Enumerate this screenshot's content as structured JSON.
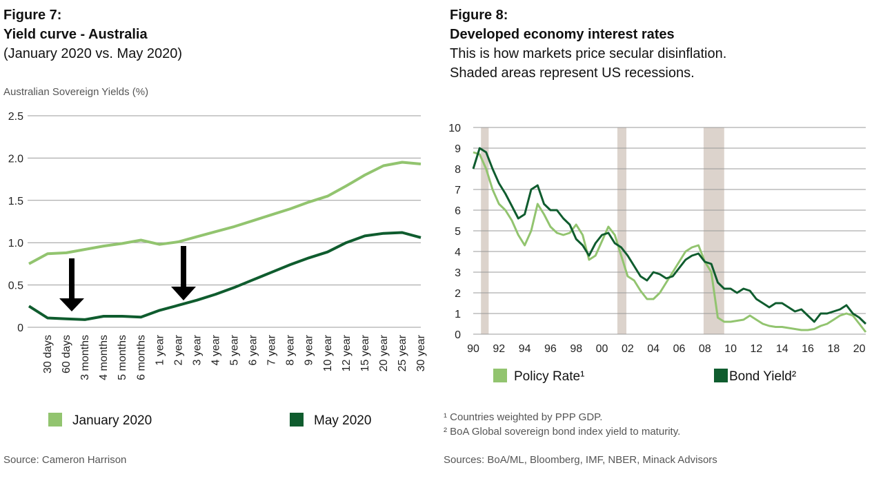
{
  "chart_data": [
    {
      "type": "line",
      "figure": "Figure 7:",
      "title": "Yield curve - Australia",
      "subtitle": "(January 2020 vs. May 2020)",
      "y_label": "Australian Sovereign Yields (%)",
      "categories": [
        null,
        "30 days",
        "60 days",
        "3 months",
        "4 months",
        "5 months",
        "6 months",
        "1 year",
        "2 year",
        "3 year",
        "4 year",
        "5 year",
        "6 year",
        "7 year",
        "8 year",
        "9 year",
        "10 year",
        "12 year",
        "15 year",
        "20 year",
        "25 year",
        "30 year"
      ],
      "series": [
        {
          "name": "January 2020",
          "color": "#92c46f",
          "values": [
            0.75,
            0.87,
            0.88,
            0.92,
            0.96,
            0.99,
            1.03,
            0.98,
            1.01,
            1.07,
            1.13,
            1.19,
            1.26,
            1.33,
            1.4,
            1.48,
            1.55,
            1.67,
            1.8,
            1.91,
            1.95,
            1.93
          ]
        },
        {
          "name": "May 2020",
          "color": "#0f5c2e",
          "values": [
            0.25,
            0.11,
            0.1,
            0.09,
            0.13,
            0.13,
            0.12,
            0.2,
            0.26,
            0.32,
            0.39,
            0.47,
            0.56,
            0.65,
            0.74,
            0.82,
            0.89,
            1.0,
            1.08,
            1.11,
            1.12,
            1.06
          ]
        }
      ],
      "ylim": [
        0,
        2.5
      ],
      "yticks": [
        0,
        0.5,
        {
          "value": 1,
          "label": "1.0"
        },
        1.5,
        {
          "value": 2,
          "label": "2.0"
        },
        2.5
      ],
      "grid": true,
      "source": "Source: Cameron Harrison"
    },
    {
      "type": "line",
      "figure": "Figure 8:",
      "title": "Developed economy interest rates",
      "subtitle": [
        "This is how markets price secular disinflation.",
        "Shaded areas represent US recessions."
      ],
      "x": [
        1990,
        1990.5,
        1991,
        1991.5,
        1992,
        1992.5,
        1993,
        1993.5,
        1994,
        1994.5,
        1995,
        1995.5,
        1996,
        1996.5,
        1997,
        1997.5,
        1998,
        1998.5,
        1999,
        1999.5,
        2000,
        2000.5,
        2001,
        2001.5,
        2002,
        2002.5,
        2003,
        2003.5,
        2004,
        2004.5,
        2005,
        2005.5,
        2006,
        2006.5,
        2007,
        2007.5,
        2008,
        2008.5,
        2009,
        2009.5,
        2010,
        2010.5,
        2011,
        2011.5,
        2012,
        2012.5,
        2013,
        2013.5,
        2014,
        2014.5,
        2015,
        2015.5,
        2016,
        2016.5,
        2017,
        2017.5,
        2018,
        2018.5,
        2019,
        2019.5,
        2020,
        2020.5
      ],
      "series": [
        {
          "name": "Policy Rate¹",
          "color": "#92c46f",
          "values": [
            8.8,
            8.7,
            8.0,
            7.0,
            6.3,
            6.0,
            5.5,
            4.8,
            4.3,
            5.0,
            6.3,
            5.8,
            5.2,
            4.9,
            4.8,
            4.9,
            5.3,
            4.8,
            3.6,
            3.8,
            4.5,
            5.2,
            4.8,
            3.8,
            2.8,
            2.6,
            2.1,
            1.7,
            1.7,
            2.0,
            2.5,
            3.0,
            3.5,
            4.0,
            4.2,
            4.3,
            3.5,
            3.0,
            0.8,
            0.6,
            0.6,
            0.65,
            0.7,
            0.9,
            0.7,
            0.5,
            0.4,
            0.35,
            0.35,
            0.3,
            0.25,
            0.2,
            0.2,
            0.25,
            0.4,
            0.5,
            0.7,
            0.9,
            1.0,
            0.9,
            0.5,
            0.1
          ]
        },
        {
          "name": "Bond Yield²",
          "color": "#0f5c2e",
          "values": [
            8.0,
            9.0,
            8.8,
            8.0,
            7.3,
            6.8,
            6.2,
            5.6,
            5.8,
            7.0,
            7.2,
            6.3,
            6.0,
            6.0,
            5.6,
            5.3,
            4.6,
            4.3,
            3.8,
            4.4,
            4.8,
            4.9,
            4.4,
            4.2,
            3.8,
            3.3,
            2.8,
            2.6,
            3.0,
            2.9,
            2.7,
            2.8,
            3.2,
            3.6,
            3.8,
            3.9,
            3.5,
            3.4,
            2.5,
            2.2,
            2.2,
            2.0,
            2.2,
            2.1,
            1.7,
            1.5,
            1.3,
            1.5,
            1.5,
            1.3,
            1.1,
            1.2,
            0.9,
            0.6,
            1.0,
            1.0,
            1.1,
            1.2,
            1.4,
            1.0,
            0.8,
            0.5
          ]
        }
      ],
      "shaded_ranges": [
        [
          1990.6,
          1991.2
        ],
        [
          2001.2,
          2001.9
        ],
        [
          2007.9,
          2009.5
        ]
      ],
      "shade_color": "#dcd3cc",
      "xlim": [
        1990,
        2020.5
      ],
      "xticks": [
        {
          "value": 1990,
          "label": "90"
        },
        {
          "value": 1992,
          "label": "92"
        },
        {
          "value": 1994,
          "label": "94"
        },
        {
          "value": 1996,
          "label": "96"
        },
        {
          "value": 1998,
          "label": "98"
        },
        {
          "value": 2000,
          "label": "00"
        },
        {
          "value": 2002,
          "label": "02"
        },
        {
          "value": 2004,
          "label": "04"
        },
        {
          "value": 2006,
          "label": "06"
        },
        {
          "value": 2008,
          "label": "08"
        },
        {
          "value": 2010,
          "label": "10"
        },
        {
          "value": 2012,
          "label": "12"
        },
        {
          "value": 2014,
          "label": "14"
        },
        {
          "value": 2016,
          "label": "16"
        },
        {
          "value": 2018,
          "label": "18"
        },
        {
          "value": 2020,
          "label": "20"
        }
      ],
      "ylim": [
        0,
        10
      ],
      "yticks": [
        0,
        1,
        2,
        3,
        4,
        5,
        6,
        7,
        8,
        9,
        10
      ],
      "grid": true,
      "footnotes": [
        "¹ Countries weighted by PPP GDP.",
        "² BoA Global sovereign bond index yield to maturity."
      ],
      "source": "Sources: BoA/ML, Bloomberg, IMF, NBER, Minack Advisors"
    }
  ]
}
